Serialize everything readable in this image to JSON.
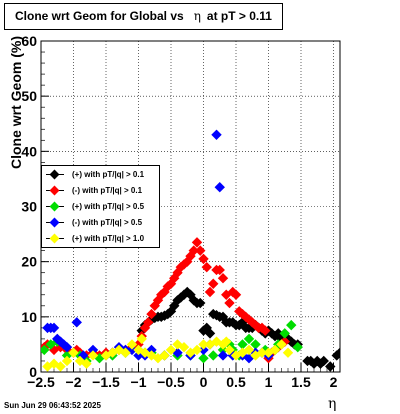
{
  "title": {
    "prefix": "Clone wrt Geom for Global vs",
    "symbol": "η",
    "suffix": "at pT > 0.11"
  },
  "date_stamp": "Sun Jun 29 06:43:52 2025",
  "chart_data": {
    "type": "scatter",
    "ylabel": "Clone wrt Geom (%)",
    "xlabel": "η",
    "xlim": [
      -2.5,
      2.1
    ],
    "ylim": [
      0,
      60
    ],
    "x_ticks": [
      {
        "v": -2.5,
        "t": "−2.5"
      },
      {
        "v": -2,
        "t": "−2"
      },
      {
        "v": -1.5,
        "t": "−1.5"
      },
      {
        "v": -1,
        "t": "−1"
      },
      {
        "v": -0.5,
        "t": "−0.5"
      },
      {
        "v": 0,
        "t": "0"
      },
      {
        "v": 0.5,
        "t": "0.5"
      },
      {
        "v": 1,
        "t": "1"
      },
      {
        "v": 1.5,
        "t": "1.5"
      },
      {
        "v": 2,
        "t": "2"
      }
    ],
    "y_ticks": [
      0,
      10,
      20,
      30,
      40,
      50,
      60
    ],
    "grid": true,
    "legend_position": "middle-left",
    "series": [
      {
        "name": "(+) with pT/|q| > 0.1",
        "color": "#000000",
        "points": [
          [
            -0.95,
            7.5
          ],
          [
            -0.9,
            8.5
          ],
          [
            -0.85,
            9
          ],
          [
            -0.8,
            9.5
          ],
          [
            -0.75,
            9.8
          ],
          [
            -0.7,
            10
          ],
          [
            -0.65,
            10
          ],
          [
            -0.6,
            10.2
          ],
          [
            -0.55,
            10.5
          ],
          [
            -0.5,
            11
          ],
          [
            -0.45,
            12
          ],
          [
            -0.4,
            13
          ],
          [
            -0.35,
            13.5
          ],
          [
            -0.3,
            14
          ],
          [
            -0.25,
            14.5
          ],
          [
            -0.2,
            14
          ],
          [
            -0.15,
            13
          ],
          [
            -0.1,
            12.5
          ],
          [
            -0.05,
            12.5
          ],
          [
            0,
            7.5
          ],
          [
            0.05,
            8
          ],
          [
            0.1,
            7
          ],
          [
            0.15,
            10.5
          ],
          [
            0.2,
            10.3
          ],
          [
            0.25,
            10
          ],
          [
            0.3,
            10
          ],
          [
            0.35,
            9
          ],
          [
            0.4,
            9
          ],
          [
            0.45,
            9
          ],
          [
            0.5,
            8.5
          ],
          [
            0.55,
            8.5
          ],
          [
            0.6,
            9
          ],
          [
            0.65,
            8
          ],
          [
            0.7,
            8
          ],
          [
            0.75,
            8
          ],
          [
            0.8,
            8.5
          ],
          [
            0.85,
            8
          ],
          [
            0.9,
            7.5
          ],
          [
            0.95,
            7
          ],
          [
            1.0,
            7.5
          ],
          [
            1.05,
            7
          ],
          [
            1.1,
            6.5
          ],
          [
            1.15,
            7
          ],
          [
            1.2,
            6
          ],
          [
            1.25,
            6
          ],
          [
            1.3,
            6
          ],
          [
            1.35,
            5.5
          ],
          [
            1.4,
            5
          ],
          [
            1.45,
            5
          ],
          [
            1.6,
            2
          ],
          [
            1.65,
            2
          ],
          [
            1.7,
            1.5
          ],
          [
            1.75,
            2
          ],
          [
            1.8,
            1.5
          ],
          [
            1.85,
            2
          ],
          [
            1.95,
            1
          ],
          [
            2.05,
            3
          ],
          [
            2.1,
            3.5
          ]
        ]
      },
      {
        "name": "(-) with pT/|q| > 0.1",
        "color": "#ff0000",
        "points": [
          [
            -2.45,
            4.5
          ],
          [
            -2.4,
            5
          ],
          [
            -2.3,
            4
          ],
          [
            -2.2,
            4.5
          ],
          [
            -2.1,
            4
          ],
          [
            -2.0,
            3.5
          ],
          [
            -1.95,
            4
          ],
          [
            -1.9,
            3.5
          ],
          [
            -1.8,
            3
          ],
          [
            -1.7,
            3.5
          ],
          [
            -1.6,
            3
          ],
          [
            -1.5,
            3.5
          ],
          [
            -1.4,
            3.5
          ],
          [
            -1.3,
            4
          ],
          [
            -1.2,
            4
          ],
          [
            -1.1,
            4.5
          ],
          [
            -1.0,
            5
          ],
          [
            -0.95,
            6.5
          ],
          [
            -0.9,
            8
          ],
          [
            -0.85,
            9
          ],
          [
            -0.8,
            10.5
          ],
          [
            -0.75,
            12
          ],
          [
            -0.7,
            13
          ],
          [
            -0.65,
            14
          ],
          [
            -0.6,
            14.5
          ],
          [
            -0.55,
            15.5
          ],
          [
            -0.5,
            16
          ],
          [
            -0.45,
            17
          ],
          [
            -0.4,
            18
          ],
          [
            -0.35,
            19
          ],
          [
            -0.3,
            19.5
          ],
          [
            -0.25,
            20
          ],
          [
            -0.2,
            21
          ],
          [
            -0.15,
            22
          ],
          [
            -0.1,
            23.5
          ],
          [
            -0.05,
            22
          ],
          [
            0,
            20.5
          ],
          [
            0.05,
            19
          ],
          [
            0.1,
            14.5
          ],
          [
            0.15,
            16
          ],
          [
            0.2,
            18.5
          ],
          [
            0.25,
            18.5
          ],
          [
            0.3,
            17
          ],
          [
            0.35,
            14
          ],
          [
            0.4,
            12.5
          ],
          [
            0.45,
            14.5
          ],
          [
            0.5,
            14
          ],
          [
            0.55,
            11
          ],
          [
            0.6,
            10.5
          ],
          [
            0.65,
            10
          ],
          [
            0.7,
            9.5
          ],
          [
            0.75,
            9
          ],
          [
            0.8,
            8.5
          ],
          [
            0.85,
            8
          ],
          [
            0.9,
            8
          ],
          [
            0.95,
            7.5
          ],
          [
            1.0,
            2.5
          ],
          [
            1.05,
            3.5
          ],
          [
            1.1,
            4
          ],
          [
            1.15,
            4.5
          ],
          [
            1.2,
            5
          ],
          [
            1.25,
            5.5
          ]
        ]
      },
      {
        "name": "(+) with pT/|q| > 0.5",
        "color": "#00dd00",
        "points": [
          [
            -2.45,
            4
          ],
          [
            -2.35,
            5
          ],
          [
            -2.25,
            5.5
          ],
          [
            -2.1,
            3
          ],
          [
            -1.9,
            3
          ],
          [
            -1.8,
            2
          ],
          [
            -1.6,
            2.5
          ],
          [
            -1.4,
            3
          ],
          [
            -1.2,
            3.5
          ],
          [
            -1.0,
            4
          ],
          [
            -0.9,
            3.5
          ],
          [
            -0.8,
            3.5
          ],
          [
            -0.6,
            3
          ],
          [
            -0.4,
            3
          ],
          [
            -0.2,
            3
          ],
          [
            0,
            2.5
          ],
          [
            0.15,
            3
          ],
          [
            0.3,
            4
          ],
          [
            0.4,
            5
          ],
          [
            0.45,
            4
          ],
          [
            0.55,
            3
          ],
          [
            0.6,
            5
          ],
          [
            0.7,
            6
          ],
          [
            0.8,
            5
          ],
          [
            0.95,
            4
          ],
          [
            1.1,
            4
          ],
          [
            1.15,
            5
          ],
          [
            1.25,
            7
          ],
          [
            1.35,
            8.5
          ],
          [
            1.45,
            4.5
          ]
        ]
      },
      {
        "name": "(-) with pT/|q| > 0.5",
        "color": "#0000ff",
        "points": [
          [
            -2.4,
            8
          ],
          [
            -2.35,
            8
          ],
          [
            -2.3,
            8
          ],
          [
            -2.25,
            6
          ],
          [
            -2.2,
            5.5
          ],
          [
            -2.15,
            5
          ],
          [
            -2.1,
            4.5
          ],
          [
            -1.95,
            9
          ],
          [
            -1.85,
            3
          ],
          [
            -1.7,
            4
          ],
          [
            -1.5,
            3
          ],
          [
            -1.4,
            3.5
          ],
          [
            -1.3,
            4.5
          ],
          [
            -1.2,
            4
          ],
          [
            -1.1,
            4
          ],
          [
            -1.0,
            3
          ],
          [
            -0.9,
            3
          ],
          [
            -0.8,
            4
          ],
          [
            -0.6,
            3
          ],
          [
            -0.4,
            3.5
          ],
          [
            -0.2,
            3
          ],
          [
            0,
            4
          ],
          [
            0.1,
            5
          ],
          [
            0.2,
            43
          ],
          [
            0.25,
            33.5
          ],
          [
            0.3,
            3
          ],
          [
            0.45,
            3
          ],
          [
            0.6,
            3
          ],
          [
            0.7,
            2.5
          ],
          [
            0.8,
            3.5
          ],
          [
            0.9,
            3.5
          ],
          [
            1.0,
            3
          ]
        ]
      },
      {
        "name": "(+) with pT/|q| > 1.0",
        "color": "#ffff00",
        "points": [
          [
            -2.4,
            1
          ],
          [
            -2.3,
            1.5
          ],
          [
            -2.2,
            1
          ],
          [
            -2.1,
            2
          ],
          [
            -2.0,
            3.5
          ],
          [
            -1.9,
            2
          ],
          [
            -1.8,
            1.5
          ],
          [
            -1.7,
            3
          ],
          [
            -1.5,
            3
          ],
          [
            -1.4,
            3.5
          ],
          [
            -1.3,
            4
          ],
          [
            -1.2,
            3.5
          ],
          [
            -1.1,
            5
          ],
          [
            -1.0,
            4
          ],
          [
            -0.95,
            6
          ],
          [
            -0.9,
            3.5
          ],
          [
            -0.8,
            3
          ],
          [
            -0.7,
            2.5
          ],
          [
            -0.6,
            3
          ],
          [
            -0.5,
            4
          ],
          [
            -0.4,
            5
          ],
          [
            -0.3,
            4.5
          ],
          [
            -0.2,
            3.5
          ],
          [
            -0.1,
            4
          ],
          [
            0,
            5
          ],
          [
            0.1,
            5
          ],
          [
            0.2,
            5.5
          ],
          [
            0.3,
            5
          ],
          [
            0.35,
            5.5
          ],
          [
            0.4,
            4
          ],
          [
            0.5,
            3
          ],
          [
            0.6,
            3.5
          ],
          [
            0.7,
            4
          ],
          [
            0.8,
            3
          ],
          [
            0.9,
            3.5
          ],
          [
            1.0,
            3.5
          ],
          [
            1.1,
            4
          ],
          [
            1.2,
            5
          ],
          [
            1.3,
            3.5
          ]
        ]
      }
    ]
  }
}
